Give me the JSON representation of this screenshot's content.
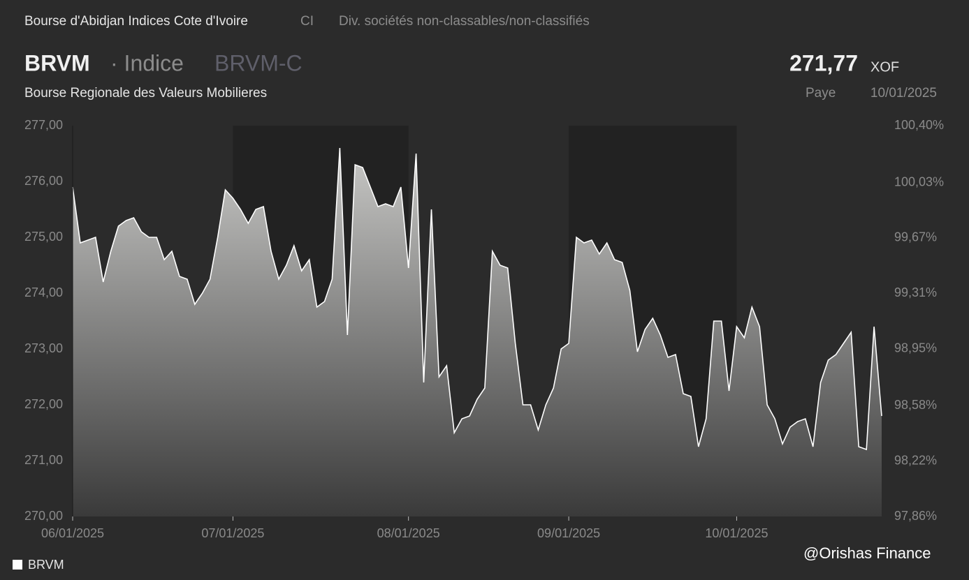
{
  "header": {
    "exchange": "Bourse d'Abidjan Indices Cote d'Ivoire",
    "country": "CI",
    "sector": "Div. sociétés non-classables/non-classifiés",
    "symbol": "BRVM",
    "kind": "· Indice",
    "index_code": "BRVM-C",
    "full_name": "Bourse Regionale des Valeurs Mobilieres",
    "price": "271,77",
    "currency": "XOF",
    "country_name": "Paye",
    "date": "10/01/2025"
  },
  "watermark": "@Orishas Finance",
  "chart_data": {
    "type": "area",
    "categories": [
      "06/01/2025",
      null,
      null,
      null,
      null,
      null,
      null,
      null,
      null,
      null,
      null,
      null,
      null,
      null,
      null,
      null,
      null,
      null,
      null,
      null,
      null,
      "07/01/2025",
      null,
      null,
      null,
      null,
      null,
      null,
      null,
      null,
      null,
      null,
      null,
      null,
      null,
      null,
      null,
      null,
      null,
      null,
      null,
      null,
      null,
      null,
      "08/01/2025",
      null,
      null,
      null,
      null,
      null,
      null,
      null,
      null,
      null,
      null,
      null,
      null,
      null,
      null,
      null,
      null,
      null,
      null,
      null,
      null,
      "09/01/2025",
      null,
      null,
      null,
      null,
      null,
      null,
      null,
      null,
      null,
      null,
      null,
      null,
      null,
      null,
      null,
      null,
      null,
      null,
      null,
      null,
      null,
      "10/01/2025",
      null,
      null,
      null,
      null,
      null,
      null,
      null,
      null,
      null,
      null,
      null,
      null,
      null,
      null,
      null,
      null,
      null,
      null,
      null
    ],
    "series": [
      {
        "name": "BRVM",
        "color": "#ffffff",
        "values": [
          275.9,
          274.9,
          274.95,
          275.0,
          274.2,
          274.75,
          275.2,
          275.3,
          275.35,
          275.1,
          275.0,
          275.0,
          274.6,
          274.75,
          274.3,
          274.25,
          273.8,
          274.0,
          274.25,
          275.0,
          275.85,
          275.7,
          275.5,
          275.25,
          275.5,
          275.55,
          274.75,
          274.25,
          274.5,
          274.85,
          274.4,
          274.6,
          273.75,
          273.85,
          274.25,
          276.6,
          273.25,
          276.3,
          276.25,
          275.9,
          275.55,
          275.6,
          275.55,
          275.9,
          274.45,
          276.5,
          272.4,
          275.5,
          272.5,
          272.7,
          271.5,
          271.75,
          271.8,
          272.1,
          272.3,
          274.75,
          274.5,
          274.45,
          273.1,
          272.0,
          272.0,
          271.55,
          272.0,
          272.3,
          273.0,
          273.1,
          275.0,
          274.9,
          274.95,
          274.7,
          274.9,
          274.6,
          274.55,
          274.05,
          272.95,
          273.35,
          273.55,
          273.25,
          272.85,
          272.9,
          272.2,
          272.15,
          271.25,
          271.75,
          273.5,
          273.5,
          272.25,
          273.4,
          273.2,
          273.75,
          273.4,
          272.0,
          271.75,
          271.3,
          271.6,
          271.7,
          271.75,
          271.25,
          272.4,
          272.8,
          272.9,
          273.1,
          273.3,
          271.25,
          271.2,
          273.4,
          271.8
        ]
      }
    ],
    "ylim": [
      270,
      277
    ],
    "yticks": [
      {
        "value": 270,
        "label": "270,00"
      },
      {
        "value": 271,
        "label": "271,00"
      },
      {
        "value": 272,
        "label": "272,00"
      },
      {
        "value": 273,
        "label": "273,00"
      },
      {
        "value": 274,
        "label": "274,00"
      },
      {
        "value": 275,
        "label": "275,00"
      },
      {
        "value": 276,
        "label": "276,00"
      },
      {
        "value": 277,
        "label": "277,00"
      }
    ],
    "y2lim": [
      97.86,
      100.4
    ],
    "y2ticks": [
      {
        "value": 97.86,
        "label": "97,86%"
      },
      {
        "value": 98.22,
        "label": "98,22%"
      },
      {
        "value": 98.58,
        "label": "98,58%"
      },
      {
        "value": 98.95,
        "label": "98,95%"
      },
      {
        "value": 99.31,
        "label": "99,31%"
      },
      {
        "value": 99.67,
        "label": "99,67%"
      },
      {
        "value": 100.03,
        "label": "100,03%"
      },
      {
        "value": 100.4,
        "label": "100,40%"
      }
    ],
    "grid": false
  }
}
